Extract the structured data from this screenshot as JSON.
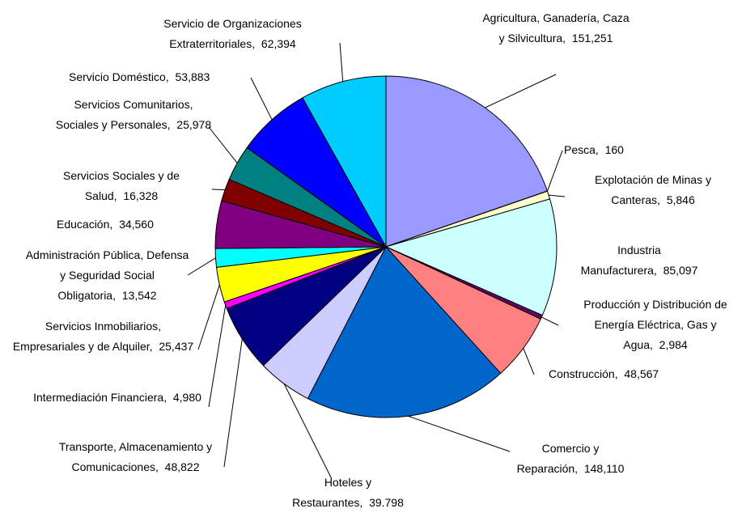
{
  "chart_data": {
    "type": "pie",
    "categories": [
      "Agricultura, Ganadería, Caza y Silvicultura",
      "Pesca",
      "Explotación de Minas y Canteras",
      "Industria Manufacturera",
      "Producción y Distribución de Energía Eléctrica, Gas y Agua",
      "Construcción",
      "Comercio y Reparación",
      "Hoteles y Restaurantes",
      "Transporte, Almacenamiento y Comunicaciones",
      "Intermediación Financiera",
      "Servicios Inmobiliarios, Empresariales y de Alquiler",
      "Administración Pública, Defensa y Seguridad Social Obligatoria",
      "Educación",
      "Servicios Sociales y de Salud",
      "Servicios Comunitarios, Sociales y Personales",
      "Servicio Doméstico",
      "Servicio de Organizaciones Extraterritoriales"
    ],
    "values": [
      151251,
      160,
      5846,
      85097,
      2984,
      48567,
      148110,
      39798,
      48822,
      4980,
      25437,
      13542,
      34560,
      16328,
      25978,
      53883,
      62394
    ],
    "value_labels": [
      "151,251",
      "160",
      "5,846",
      "85,097",
      "2,984",
      "48,567",
      "148,110",
      "39.798",
      "48,822",
      "4,980",
      "25,437",
      "13,542",
      "34,560",
      "16,328",
      "25,978",
      "53,883",
      "62,394"
    ],
    "colors": [
      "#9999ff",
      "#993366",
      "#ffffcc",
      "#ccffff",
      "#660066",
      "#ff8080",
      "#0066cc",
      "#ccccff",
      "#000080",
      "#ff00ff",
      "#ffff00",
      "#00ffff",
      "#800080",
      "#800000",
      "#008080",
      "#0000ff",
      "#00ccff"
    ]
  }
}
